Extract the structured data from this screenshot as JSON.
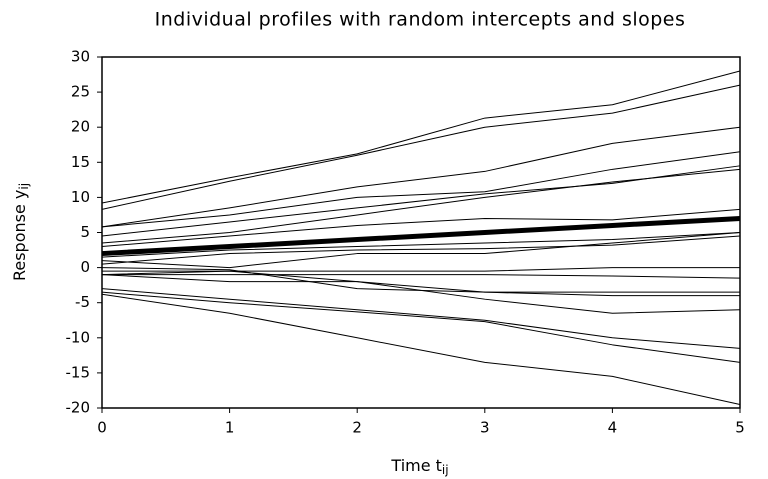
{
  "chart_data": {
    "type": "line",
    "title": "Individual profiles with random intercepts and slopes",
    "xlabel": "Time t",
    "xlabel_sub": "ij",
    "ylabel": "Response y",
    "ylabel_sub": "ij",
    "x": [
      0,
      1,
      2,
      3,
      4,
      5
    ],
    "xlim": [
      0,
      5
    ],
    "xticks": [
      0,
      1,
      2,
      3,
      4,
      5
    ],
    "ylim": [
      -20,
      30
    ],
    "yticks": [
      -20,
      -15,
      -10,
      -5,
      0,
      5,
      10,
      15,
      20,
      25,
      30
    ],
    "series": [
      {
        "color": "#000000",
        "line_width": 1,
        "values": [
          9.2,
          12.8,
          16.2,
          21.3,
          23.2,
          28.0
        ]
      },
      {
        "color": "#000000",
        "line_width": 1,
        "values": [
          8.3,
          12.3,
          16.0,
          20.0,
          22.0,
          26.0
        ]
      },
      {
        "color": "#000000",
        "line_width": 1,
        "values": [
          5.8,
          8.5,
          11.5,
          13.7,
          17.7,
          20.0
        ]
      },
      {
        "color": "#000000",
        "line_width": 1,
        "values": [
          5.8,
          7.5,
          10.0,
          10.8,
          14.0,
          16.5
        ]
      },
      {
        "color": "#000000",
        "line_width": 1,
        "values": [
          4.5,
          6.5,
          8.5,
          10.5,
          12.0,
          14.5
        ]
      },
      {
        "color": "#000000",
        "line_width": 1,
        "values": [
          3.5,
          5.0,
          7.5,
          10.0,
          12.2,
          14.0
        ]
      },
      {
        "color": "#000000",
        "line_width": 1,
        "values": [
          3.0,
          4.5,
          6.0,
          7.0,
          6.8,
          8.3
        ]
      },
      {
        "color": "#000000",
        "line_width": 1,
        "values": [
          1.5,
          2.5,
          3.0,
          3.5,
          4.0,
          5.0
        ]
      },
      {
        "color": "#000000",
        "line_width": 1,
        "values": [
          0.5,
          2.0,
          2.5,
          2.7,
          3.2,
          4.5
        ]
      },
      {
        "color": "#000000",
        "line_width": 1,
        "values": [
          1.0,
          0.0,
          2.0,
          2.0,
          3.5,
          5.0
        ]
      },
      {
        "color": "#000000",
        "line_width": 1,
        "values": [
          -0.5,
          -0.5,
          -0.5,
          -0.5,
          0.0,
          0.0
        ]
      },
      {
        "color": "#000000",
        "line_width": 1,
        "values": [
          -1.0,
          -1.0,
          -1.0,
          -1.0,
          -1.2,
          -1.5
        ]
      },
      {
        "color": "#000000",
        "line_width": 1,
        "values": [
          -1.0,
          -2.0,
          -2.0,
          -3.5,
          -4.0,
          -4.0
        ]
      },
      {
        "color": "#000000",
        "line_width": 1,
        "values": [
          0.0,
          -0.3,
          -3.0,
          -3.5,
          -3.5,
          -3.5
        ]
      },
      {
        "color": "#000000",
        "line_width": 1,
        "values": [
          -1.0,
          -0.5,
          -2.0,
          -4.5,
          -6.5,
          -6.0
        ]
      },
      {
        "color": "#000000",
        "line_width": 1,
        "values": [
          -3.0,
          -4.5,
          -6.0,
          -7.5,
          -10.0,
          -11.5
        ]
      },
      {
        "color": "#000000",
        "line_width": 1,
        "values": [
          -3.5,
          -5.0,
          -6.3,
          -7.7,
          -11.0,
          -13.5
        ]
      },
      {
        "color": "#000000",
        "line_width": 1,
        "values": [
          -3.8,
          -6.5,
          -10.0,
          -13.5,
          -15.5,
          -19.5
        ]
      },
      {
        "color": "#000000",
        "line_width": 5,
        "values": [
          2.0,
          3.0,
          4.0,
          5.0,
          6.0,
          7.0
        ]
      }
    ]
  }
}
